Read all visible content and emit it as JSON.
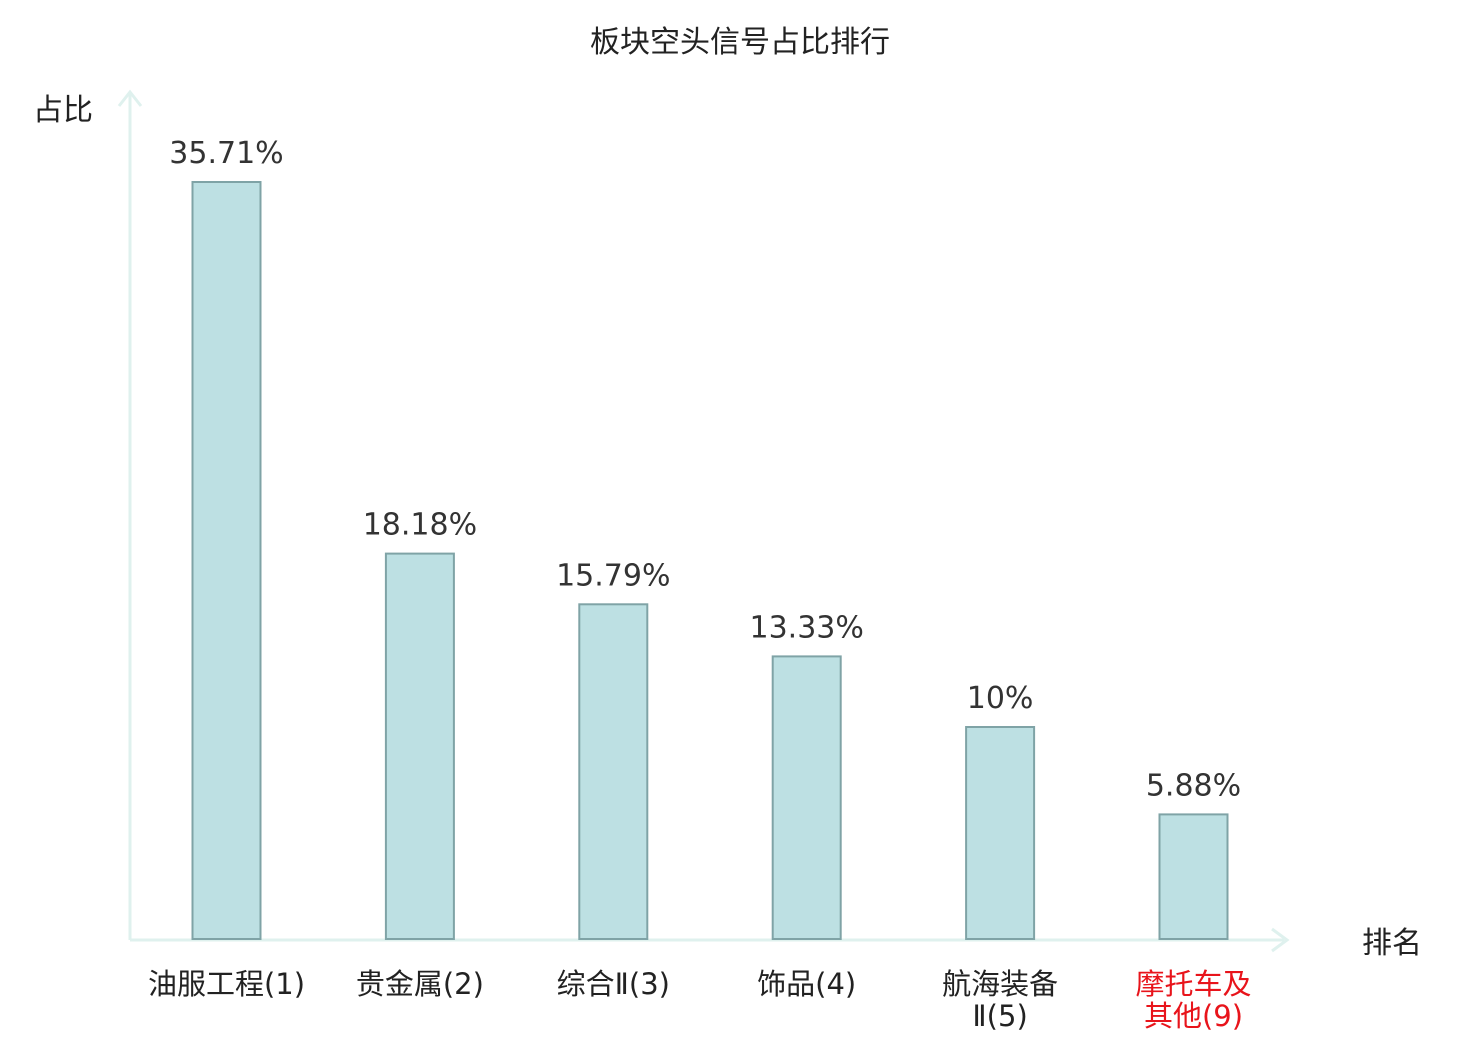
{
  "chart_data": {
    "type": "bar",
    "title": "板块空头信号占比排行",
    "xlabel": "排名",
    "ylabel": "占比",
    "ylim": [
      0,
      0.3571
    ],
    "grid": false,
    "legend": "none",
    "categories": [
      {
        "lines": [
          "油服工程(1)"
        ],
        "highlight": false
      },
      {
        "lines": [
          "贵金属(2)"
        ],
        "highlight": false
      },
      {
        "lines": [
          "综合Ⅱ(3)"
        ],
        "highlight": false
      },
      {
        "lines": [
          "饰品(4)"
        ],
        "highlight": false
      },
      {
        "lines": [
          "航海装备",
          "Ⅱ(5)"
        ],
        "highlight": false
      },
      {
        "lines": [
          "摩托车及",
          "其他(9)"
        ],
        "highlight": true
      }
    ],
    "values": [
      0.3571,
      0.1818,
      0.1579,
      0.1333,
      0.1,
      0.0588
    ],
    "value_labels": [
      "35.71%",
      "18.18%",
      "15.79%",
      "13.33%",
      "10%",
      "5.88%"
    ]
  },
  "colors": {
    "bar_fill": "#bde0e3",
    "bar_stroke": "#7fa3a6",
    "axis": "#dff1ee",
    "text": "#222222",
    "value_text": "#333333",
    "highlight_text": "#e8141b"
  }
}
